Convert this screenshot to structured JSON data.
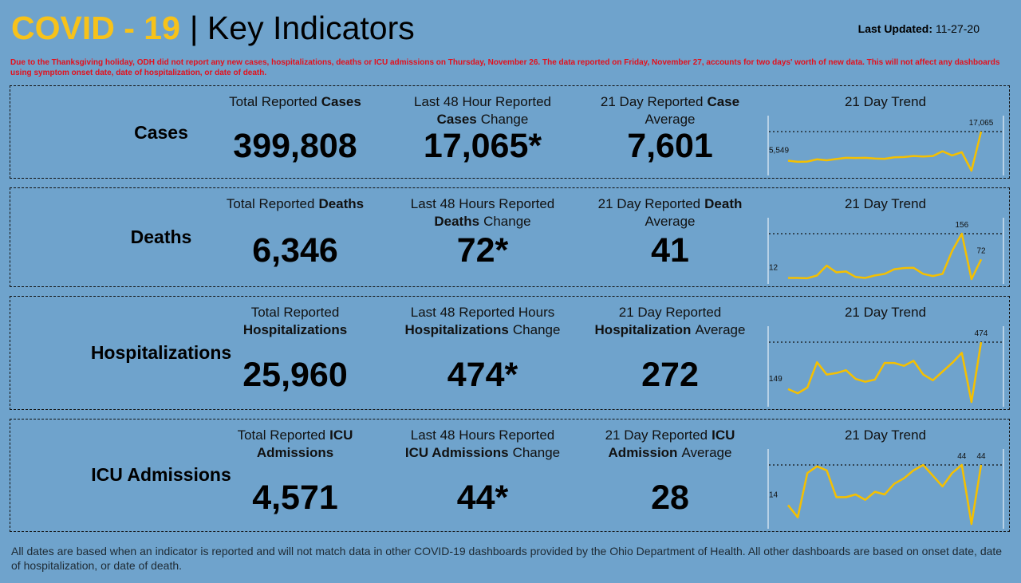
{
  "header": {
    "title_highlight": "COVID - 19",
    "title_rest": "| Key Indicators",
    "last_updated_label": "Last Updated:",
    "last_updated_value": "11-27-20"
  },
  "notice": "Due to the Thanksgiving holiday, ODH did not report any new cases, hospitalizations, deaths or ICU admissions on Thursday, November 26. The data reported on Friday, November 27, accounts for two days' worth of new data. This will not affect any dashboards using symptom onset date, date of hospitalization, or date of death.",
  "panels": [
    {
      "name": "Cases",
      "metrics": [
        {
          "label": [
            [
              {
                "text": "Total Reported"
              },
              {
                "text": "Cases",
                "bold": true
              }
            ]
          ],
          "value": "399,808"
        },
        {
          "label": [
            [
              {
                "text": "Last 48 Hour Reported"
              }
            ],
            [
              {
                "text": "Cases",
                "bold": true
              },
              {
                "text": "Change"
              }
            ]
          ],
          "value": "17,065*"
        },
        {
          "label": [
            [
              {
                "text": "21 Day Reported"
              },
              {
                "text": "Case",
                "bold": true
              }
            ],
            [
              {
                "text": "Average"
              }
            ]
          ],
          "value": "7,601"
        }
      ],
      "trend": {
        "title": "21 Day Trend",
        "values": [
          5549,
          5100,
          5200,
          6100,
          5700,
          6200,
          6700,
          6600,
          6700,
          6400,
          6300,
          6900,
          7000,
          7400,
          7200,
          7400,
          9300,
          7600,
          8900,
          1600,
          17065
        ],
        "value_labels": [
          "5,549",
          null,
          null,
          null,
          null,
          null,
          null,
          null,
          null,
          null,
          null,
          null,
          null,
          null,
          null,
          null,
          null,
          null,
          null,
          null,
          "17,065"
        ]
      }
    },
    {
      "name": "Deaths",
      "metrics": [
        {
          "label": [
            [
              {
                "text": "Total Reported"
              },
              {
                "text": "Deaths",
                "bold": true
              }
            ]
          ],
          "value": "6,346"
        },
        {
          "label": [
            [
              {
                "text": "Last 48 Hours Reported"
              }
            ],
            [
              {
                "text": "Deaths",
                "bold": true
              },
              {
                "text": "Change"
              }
            ]
          ],
          "value": "72*"
        },
        {
          "label": [
            [
              {
                "text": "21 Day Reported"
              },
              {
                "text": "Death",
                "bold": true
              }
            ],
            [
              {
                "text": "Average"
              }
            ]
          ],
          "value": "41"
        }
      ],
      "trend": {
        "title": "21 Day Trend",
        "values": [
          12,
          12,
          11,
          20,
          52,
          30,
          33,
          15,
          12,
          20,
          25,
          40,
          44,
          45,
          25,
          18,
          25,
          100,
          156,
          8,
          72
        ],
        "value_labels": [
          "12",
          null,
          null,
          null,
          null,
          null,
          null,
          null,
          null,
          null,
          null,
          null,
          null,
          null,
          null,
          null,
          null,
          null,
          "156",
          null,
          "72"
        ]
      }
    },
    {
      "name": "Hospitalizations",
      "metrics": [
        {
          "label": [
            [
              {
                "text": "Total Reported"
              }
            ],
            [
              {
                "text": "Hospitalizations",
                "bold": true
              }
            ]
          ],
          "value": "25,960"
        },
        {
          "label": [
            [
              {
                "text": "Last 48 Reported Hours"
              }
            ],
            [
              {
                "text": "Hospitalizations",
                "bold": true
              },
              {
                "text": "Change"
              }
            ]
          ],
          "value": "474*"
        },
        {
          "label": [
            [
              {
                "text": "21 Day Reported"
              }
            ],
            [
              {
                "text": "Hospitalization",
                "bold": true
              },
              {
                "text": "Average"
              }
            ]
          ],
          "value": "272"
        }
      ],
      "trend": {
        "title": "21 Day Trend",
        "values": [
          149,
          120,
          160,
          335,
          250,
          260,
          280,
          220,
          200,
          215,
          330,
          330,
          310,
          345,
          250,
          210,
          270,
          330,
          400,
          60,
          474
        ],
        "value_labels": [
          "149",
          null,
          null,
          null,
          null,
          null,
          null,
          null,
          null,
          null,
          null,
          null,
          null,
          null,
          null,
          null,
          null,
          null,
          null,
          null,
          "474"
        ]
      }
    },
    {
      "name": "ICU Admissions",
      "metrics": [
        {
          "label": [
            [
              {
                "text": "Total Reported"
              },
              {
                "text": "ICU",
                "bold": true
              }
            ],
            [
              {
                "text": "Admissions",
                "bold": true
              }
            ]
          ],
          "value": "4,571"
        },
        {
          "label": [
            [
              {
                "text": "Last 48 Hours Reported"
              }
            ],
            [
              {
                "text": "ICU Admissions",
                "bold": true
              },
              {
                "text": "Change"
              }
            ]
          ],
          "value": "44*"
        },
        {
          "label": [
            [
              {
                "text": "21 Day Reported"
              },
              {
                "text": "ICU",
                "bold": true
              }
            ],
            [
              {
                "text": "Admission",
                "bold": true
              },
              {
                "text": "Average"
              }
            ]
          ],
          "value": "28"
        }
      ],
      "trend": {
        "title": "21 Day Trend",
        "values": [
          14,
          5,
          38,
          43,
          40,
          20,
          20,
          22,
          18,
          24,
          22,
          30,
          34,
          40,
          44,
          36,
          28,
          38,
          44,
          0,
          44
        ],
        "value_labels": [
          "14",
          null,
          null,
          null,
          null,
          null,
          null,
          null,
          null,
          null,
          null,
          null,
          null,
          null,
          null,
          null,
          null,
          null,
          "44",
          null,
          "44"
        ]
      }
    }
  ],
  "footer": "All dates are based when an indicator is reported and will not match data in other COVID-19 dashboards provided by the Ohio Department of Health. All other dashboards are based on onset date, date of hospitalization, or date of death."
}
